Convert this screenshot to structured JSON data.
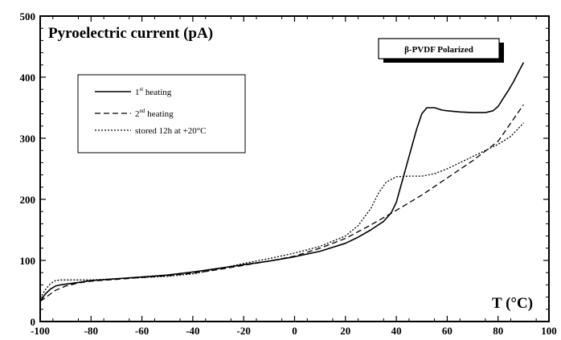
{
  "chart_data": {
    "type": "line",
    "title": "Pyroelectric current (pA)",
    "xlabel": "T (°C)",
    "ylabel": "",
    "badge": "β-PVDF Polarized",
    "xlim": [
      -100,
      100
    ],
    "ylim": [
      0,
      500
    ],
    "x_ticks": [
      -100,
      -80,
      -60,
      -40,
      -20,
      0,
      20,
      40,
      60,
      80,
      100
    ],
    "y_ticks": [
      0,
      100,
      200,
      300,
      400,
      500
    ],
    "x_tick_labels": [
      "-100",
      "-80",
      "-60",
      "-40",
      "-20",
      "0",
      "20",
      "40",
      "60",
      "80",
      "100"
    ],
    "y_tick_labels": [
      "0",
      "100",
      "200",
      "300",
      "400",
      "500"
    ],
    "grid": false,
    "legend_position": "upper-left",
    "series": [
      {
        "name": "1st heating",
        "label_main": "1",
        "label_sup": "st",
        "label_rest": " heating",
        "style": "solid",
        "x": [
          -100,
          -98,
          -96,
          -94,
          -92,
          -90,
          -85,
          -80,
          -70,
          -60,
          -50,
          -40,
          -30,
          -20,
          -10,
          0,
          10,
          20,
          25,
          30,
          35,
          38,
          40,
          42,
          45,
          48,
          50,
          52,
          55,
          58,
          60,
          65,
          70,
          75,
          78,
          80,
          82,
          84,
          86,
          88,
          90
        ],
        "y": [
          33,
          45,
          53,
          58,
          60,
          61,
          64,
          67,
          70,
          73,
          76,
          81,
          87,
          93,
          99,
          106,
          115,
          128,
          138,
          150,
          164,
          178,
          195,
          225,
          270,
          315,
          340,
          350,
          350,
          346,
          345,
          343,
          342,
          342,
          345,
          352,
          365,
          378,
          392,
          408,
          424
        ]
      },
      {
        "name": "2nd heating",
        "label_main": "2",
        "label_sup": "nd",
        "label_rest": " heating",
        "style": "dashed",
        "x": [
          -100,
          -97,
          -94,
          -90,
          -85,
          -80,
          -70,
          -60,
          -50,
          -40,
          -30,
          -20,
          -10,
          0,
          10,
          20,
          30,
          40,
          50,
          60,
          70,
          80,
          90
        ],
        "y": [
          33,
          42,
          51,
          58,
          63,
          66,
          69,
          72,
          75,
          79,
          85,
          92,
          99,
          107,
          120,
          136,
          158,
          182,
          207,
          235,
          263,
          295,
          355
        ]
      },
      {
        "name": "stored 12h at +20°C",
        "label_main": "stored 12h at +20°C",
        "label_sup": "",
        "label_rest": "",
        "style": "dotted",
        "x": [
          -100,
          -98,
          -96,
          -94,
          -92,
          -90,
          -85,
          -80,
          -70,
          -60,
          -50,
          -40,
          -30,
          -20,
          -10,
          0,
          10,
          20,
          25,
          30,
          33,
          36,
          40,
          45,
          50,
          55,
          60,
          65,
          70,
          75,
          80,
          85,
          90
        ],
        "y": [
          38,
          52,
          62,
          67,
          68,
          68,
          68,
          68,
          70,
          72,
          74,
          78,
          86,
          95,
          103,
          112,
          123,
          140,
          157,
          185,
          210,
          228,
          237,
          238,
          238,
          242,
          250,
          260,
          270,
          280,
          290,
          303,
          325
        ]
      }
    ]
  }
}
